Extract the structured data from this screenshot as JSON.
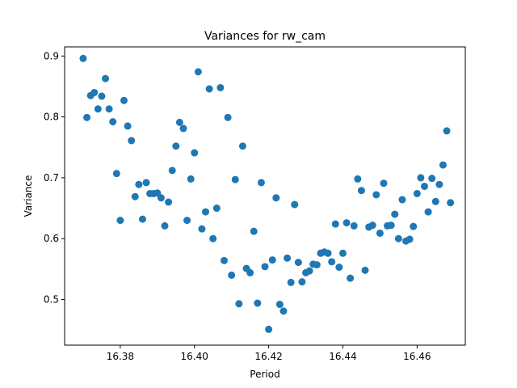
{
  "chart_data": {
    "type": "scatter",
    "title": "Variances for rw_cam",
    "xlabel": "Period",
    "ylabel": "Variance",
    "xlim": [
      16.365,
      16.473
    ],
    "ylim": [
      0.425,
      0.915
    ],
    "xticks": [
      16.38,
      16.4,
      16.42,
      16.44,
      16.46
    ],
    "xtick_labels": [
      "16.38",
      "16.40",
      "16.42",
      "16.44",
      "16.46"
    ],
    "yticks": [
      0.5,
      0.6,
      0.7,
      0.8,
      0.9
    ],
    "ytick_labels": [
      "0.5",
      "0.6",
      "0.7",
      "0.8",
      "0.9"
    ],
    "grid": false,
    "marker_color": "#1f77b4",
    "x": [
      16.37,
      16.371,
      16.372,
      16.373,
      16.374,
      16.375,
      16.376,
      16.377,
      16.378,
      16.379,
      16.38,
      16.381,
      16.382,
      16.383,
      16.384,
      16.385,
      16.386,
      16.387,
      16.388,
      16.389,
      16.39,
      16.391,
      16.392,
      16.393,
      16.394,
      16.395,
      16.396,
      16.397,
      16.398,
      16.399,
      16.4,
      16.401,
      16.402,
      16.403,
      16.404,
      16.405,
      16.406,
      16.407,
      16.408,
      16.409,
      16.41,
      16.411,
      16.412,
      16.413,
      16.414,
      16.415,
      16.416,
      16.417,
      16.418,
      16.419,
      16.42,
      16.421,
      16.422,
      16.423,
      16.424,
      16.425,
      16.426,
      16.427,
      16.428,
      16.429,
      16.43,
      16.431,
      16.432,
      16.433,
      16.434,
      16.435,
      16.436,
      16.437,
      16.438,
      16.439,
      16.44,
      16.441,
      16.442,
      16.443,
      16.444,
      16.445,
      16.446,
      16.447,
      16.448,
      16.449,
      16.45,
      16.451,
      16.452,
      16.453,
      16.454,
      16.455,
      16.456,
      16.457,
      16.458,
      16.459,
      16.46,
      16.461,
      16.462,
      16.463,
      16.464,
      16.465,
      16.466,
      16.467,
      16.468,
      16.469
    ],
    "y": [
      0.896,
      0.799,
      0.835,
      0.84,
      0.813,
      0.834,
      0.863,
      0.813,
      0.792,
      0.707,
      0.63,
      0.827,
      0.785,
      0.761,
      0.669,
      0.689,
      0.632,
      0.692,
      0.674,
      0.674,
      0.675,
      0.667,
      0.621,
      0.66,
      0.712,
      0.752,
      0.791,
      0.781,
      0.63,
      0.698,
      0.741,
      0.874,
      0.616,
      0.644,
      0.846,
      0.6,
      0.65,
      0.848,
      0.564,
      0.799,
      0.54,
      0.697,
      0.493,
      0.752,
      0.551,
      0.544,
      0.612,
      0.494,
      0.692,
      0.554,
      0.451,
      0.565,
      0.667,
      0.492,
      0.481,
      0.568,
      0.528,
      0.656,
      0.561,
      0.529,
      0.544,
      0.547,
      0.558,
      0.557,
      0.576,
      0.578,
      0.576,
      0.562,
      0.624,
      0.553,
      0.576,
      0.626,
      0.535,
      0.621,
      0.698,
      0.679,
      0.548,
      0.619,
      0.622,
      0.672,
      0.609,
      0.691,
      0.621,
      0.622,
      0.64,
      0.6,
      0.664,
      0.596,
      0.599,
      0.62,
      0.674,
      0.7,
      0.686,
      0.644,
      0.699,
      0.661,
      0.689,
      0.721,
      0.777,
      0.659
    ]
  }
}
